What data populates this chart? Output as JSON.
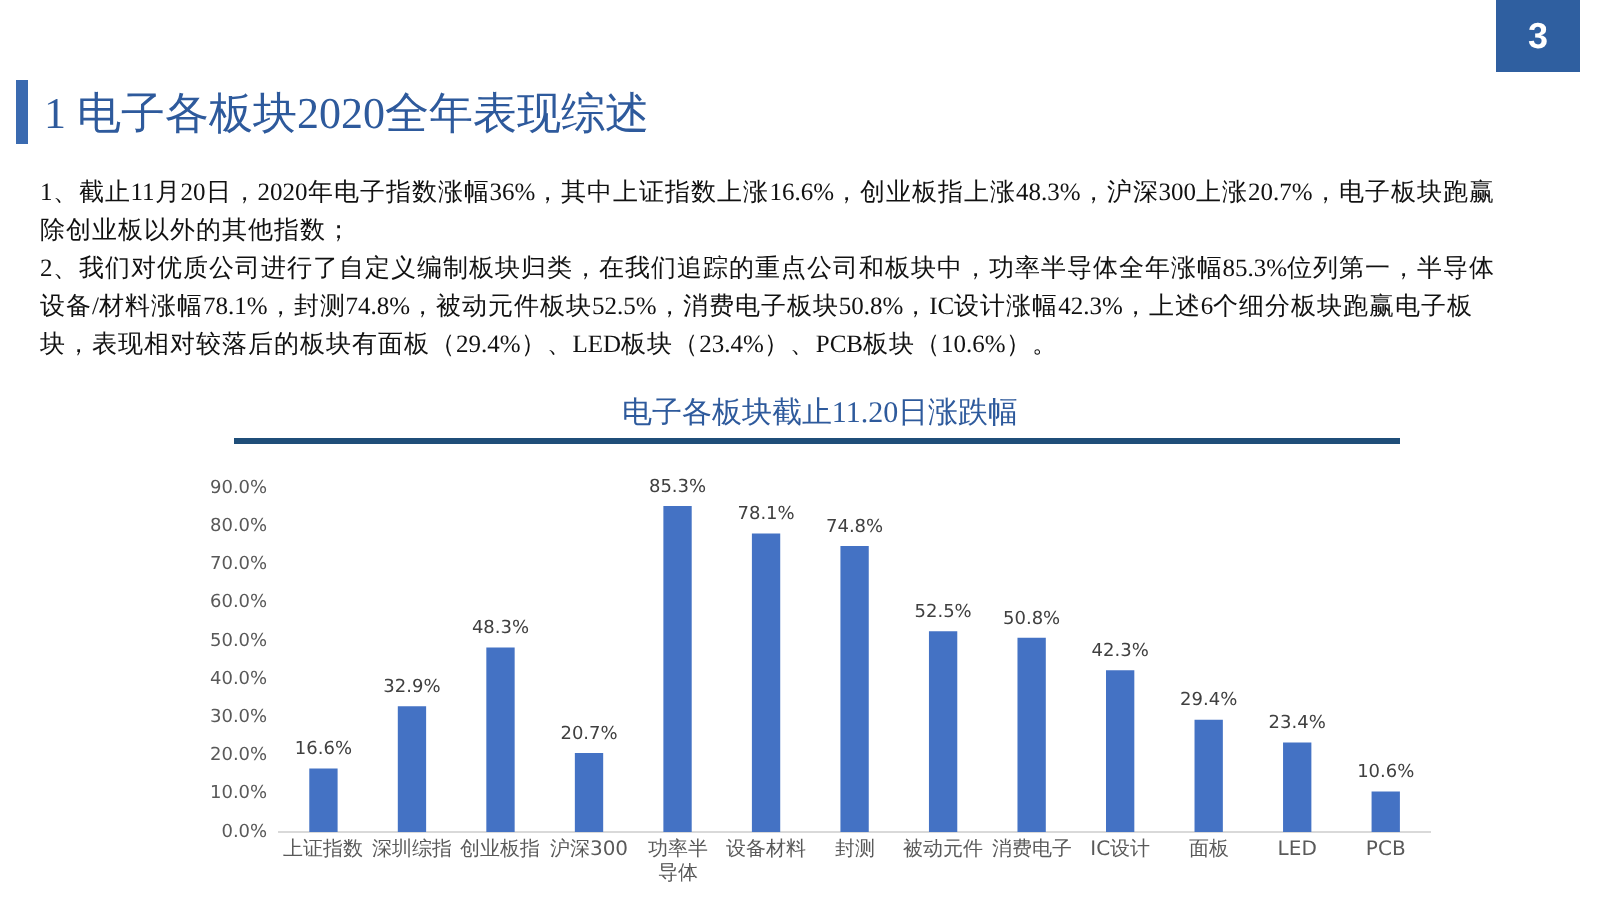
{
  "chart_data": {
    "type": "bar",
    "title": "电子各板块截止11.20日涨跌幅",
    "annotations": [
      "3",
      "1 电子各板块2020全年表现综述",
      "1、截止11月20日，2020年电子指数涨幅36%，其中上证指数上涨16.6%，创业板指上涨48.3%，沪深300上涨20.7%，电子板块跑赢除创业板以外的其他指数；",
      "2、我们对优质公司进行了自定义编制板块归类，在我们追踪的重点公司和板块中，功率半导体全年涨幅85.3%位列第一，半导体设备/材料涨幅78.1%，封测74.8%，被动元件板块52.5%，消费电子板块50.8%，IC设计涨幅42.3%，上述6个细分板块跑赢电子板块，表现相对较落后的板块有面板（29.4%）、LED板块（23.4%）、PCB板块（10.6%）。"
    ],
    "categories": [
      "上证指数",
      "深圳综指",
      "创业板指",
      "沪深300",
      "功率半导体",
      "设备材料",
      "封测",
      "被动元件",
      "消费电子",
      "IC设计",
      "面板",
      "LED",
      "PCB"
    ],
    "values": [
      16.6,
      32.9,
      48.3,
      20.7,
      85.3,
      78.1,
      74.8,
      52.5,
      50.8,
      42.3,
      29.4,
      23.4,
      10.6
    ],
    "value_labels": [
      "16.6%",
      "32.9%",
      "48.3%",
      "20.7%",
      "85.3%",
      "78.1%",
      "74.8%",
      "52.5%",
      "50.8%",
      "42.3%",
      "29.4%",
      "23.4%",
      "10.6%"
    ],
    "color": "#4472c4",
    "ylim": [
      0,
      90
    ],
    "yticks": [
      {
        "value": 0,
        "label": "0.0%"
      },
      {
        "value": 10,
        "label": "10.0%"
      },
      {
        "value": 20,
        "label": "20.0%"
      },
      {
        "value": 30,
        "label": "30.0%"
      },
      {
        "value": 40,
        "label": "40.0%"
      },
      {
        "value": 50,
        "label": "50.0%"
      },
      {
        "value": 60,
        "label": "60.0%"
      },
      {
        "value": 70,
        "label": "70.0%"
      },
      {
        "value": 80,
        "label": "80.0%"
      },
      {
        "value": 90,
        "label": "90.0%"
      }
    ]
  }
}
